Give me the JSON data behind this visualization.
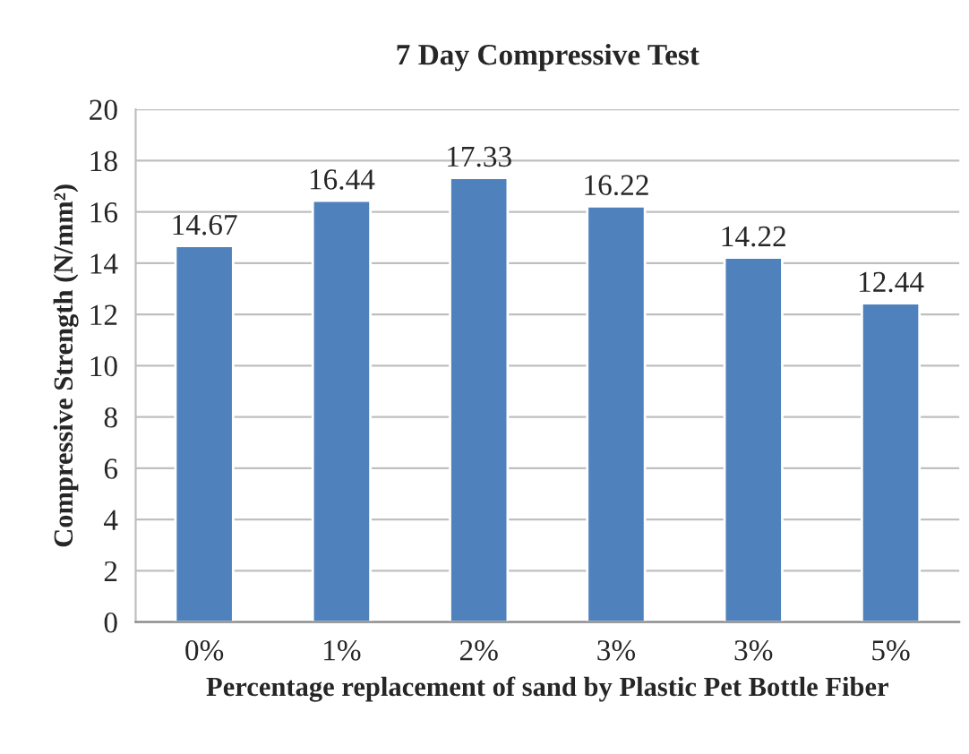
{
  "chart_data": {
    "type": "bar",
    "title": "7 Day Compressive Test",
    "xlabel": "Percentage replacement of sand by Plastic Pet Bottle Fiber",
    "ylabel": "Compressive Strength (N/mm²)",
    "categories": [
      "0%",
      "1%",
      "2%",
      "3%",
      "3%",
      "5%"
    ],
    "values": [
      14.67,
      16.44,
      17.33,
      16.22,
      14.22,
      12.44
    ],
    "color": "#4f81bd",
    "ylim": [
      0,
      20
    ],
    "yticks": [
      0,
      2,
      4,
      6,
      8,
      10,
      12,
      14,
      16,
      18,
      20
    ],
    "grid": "y",
    "data_labels": true
  }
}
